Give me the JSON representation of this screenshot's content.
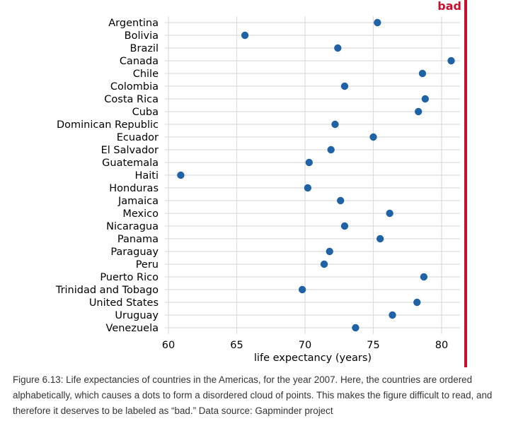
{
  "chart_data": {
    "type": "scatter",
    "categories": [
      "Argentina",
      "Bolivia",
      "Brazil",
      "Canada",
      "Chile",
      "Colombia",
      "Costa Rica",
      "Cuba",
      "Dominican Republic",
      "Ecuador",
      "El Salvador",
      "Guatemala",
      "Haiti",
      "Honduras",
      "Jamaica",
      "Mexico",
      "Nicaragua",
      "Panama",
      "Paraguay",
      "Peru",
      "Puerto Rico",
      "Trinidad and Tobago",
      "United States",
      "Uruguay",
      "Venezuela"
    ],
    "values": [
      75.3,
      65.6,
      72.4,
      80.7,
      78.6,
      72.9,
      78.8,
      78.3,
      72.2,
      75.0,
      71.9,
      70.3,
      60.9,
      70.2,
      72.6,
      76.2,
      72.9,
      75.5,
      71.8,
      71.4,
      78.7,
      69.8,
      78.2,
      76.4,
      73.7
    ],
    "xlabel": "life expectancy (years)",
    "xlim": [
      58.5,
      81.8
    ],
    "xticks": [
      60,
      65,
      70,
      75,
      80
    ],
    "grid": true,
    "point_color": "#1f63a6",
    "flag_color": "#c8102e"
  },
  "badge": "bad",
  "caption": "Figure 6.13: Life expectancies of countries in the Americas, for the year 2007. Here, the countries are ordered alphabetically, which causes a dots to form a disordered cloud of points. This makes the figure difficult to read, and therefore it deserves to be labeled as “bad.” Data source: Gapminder project"
}
